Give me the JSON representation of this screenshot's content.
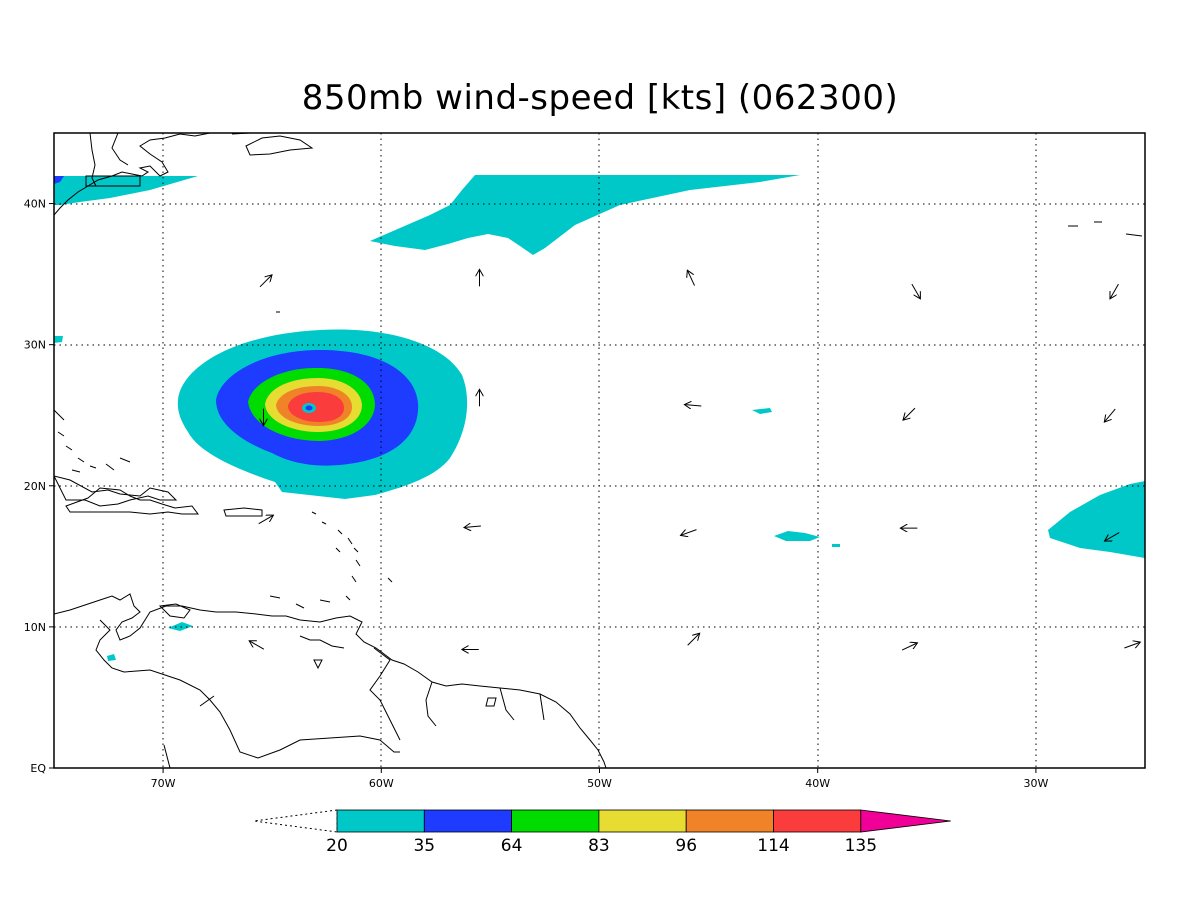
{
  "title": "850mb wind-speed [kts] (062300)",
  "map": {
    "lon_range": [
      -75,
      -25
    ],
    "lat_range": [
      0,
      45
    ],
    "lon_ticks": [
      {
        "lon": -70,
        "label": "70W"
      },
      {
        "lon": -60,
        "label": "60W"
      },
      {
        "lon": -50,
        "label": "50W"
      },
      {
        "lon": -40,
        "label": "40W"
      },
      {
        "lon": -30,
        "label": "30W"
      }
    ],
    "lat_ticks": [
      {
        "lat": 40,
        "label": "40N"
      },
      {
        "lat": 30,
        "label": "30N"
      },
      {
        "lat": 20,
        "label": "20N"
      },
      {
        "lat": 10,
        "label": "10N"
      },
      {
        "lat": 0,
        "label": "EQ"
      }
    ],
    "grid": "dotted",
    "storm_center": {
      "lon": -63.2,
      "lat": 25.5
    }
  },
  "colorbar": {
    "levels": [
      "20",
      "35",
      "64",
      "83",
      "96",
      "114",
      "135"
    ],
    "colors": [
      "#00c8c8",
      "#1e3cff",
      "#00dc00",
      "#e6dc32",
      "#f08228",
      "#fa3c3c",
      "#f00096"
    ]
  },
  "wind_vectors": [
    {
      "lon": -65.3,
      "lat": 34.5,
      "dir": 45
    },
    {
      "lon": -55.5,
      "lat": 34.7,
      "dir": 0
    },
    {
      "lon": -45.8,
      "lat": 34.7,
      "dir": -25
    },
    {
      "lon": -35.5,
      "lat": 33.8,
      "dir": 150
    },
    {
      "lon": -26.4,
      "lat": 33.8,
      "dir": 210
    },
    {
      "lon": -55.5,
      "lat": 26.2,
      "dir": 0
    },
    {
      "lon": -45.7,
      "lat": 25.7,
      "dir": -85
    },
    {
      "lon": -35.8,
      "lat": 25.1,
      "dir": 225
    },
    {
      "lon": -26.6,
      "lat": 25.0,
      "dir": 220
    },
    {
      "lon": -65.4,
      "lat": 24.9,
      "dir": 180
    },
    {
      "lon": -65.3,
      "lat": 17.6,
      "dir": 60
    },
    {
      "lon": -55.8,
      "lat": 17.1,
      "dir": -95
    },
    {
      "lon": -45.9,
      "lat": 16.7,
      "dir": -110
    },
    {
      "lon": -35.8,
      "lat": 17.0,
      "dir": -90
    },
    {
      "lon": -26.5,
      "lat": 16.4,
      "dir": 240
    },
    {
      "lon": -65.7,
      "lat": 8.7,
      "dir": -60
    },
    {
      "lon": -55.9,
      "lat": 8.4,
      "dir": -90
    },
    {
      "lon": -45.7,
      "lat": 9.1,
      "dir": 45
    },
    {
      "lon": -35.8,
      "lat": 8.6,
      "dir": 65
    },
    {
      "lon": -25.6,
      "lat": 8.7,
      "dir": 70
    }
  ]
}
